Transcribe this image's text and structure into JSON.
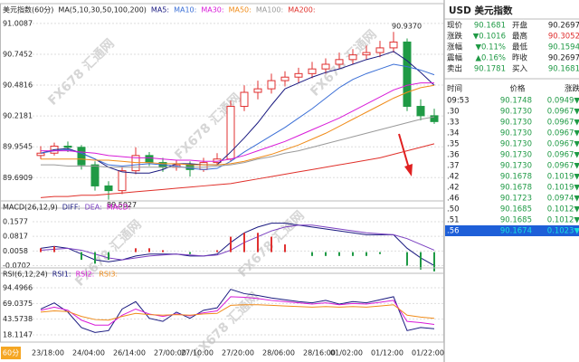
{
  "chart_data": [
    {
      "type": "candlestick",
      "title": "美元指数(60分)",
      "subtitle": "MA(5,10,30,50,100,200)",
      "ylim": [
        89.43,
        91.07
      ],
      "yticks": [
        91.0087,
        90.7452,
        90.4816,
        90.2181,
        89.9545,
        89.6909
      ],
      "grid": true,
      "up_color": "#e03030",
      "down_color": "#1f9a45",
      "open": [
        89.88,
        89.9,
        89.96,
        89.95,
        89.8,
        89.62,
        89.58,
        89.75,
        89.88,
        89.82,
        89.78,
        89.8,
        89.76,
        89.82,
        89.85,
        90.3,
        90.42,
        90.45,
        90.52,
        90.55,
        90.58,
        90.62,
        90.66,
        90.7,
        90.74,
        90.76,
        90.8,
        90.85,
        90.3,
        90.22
      ],
      "high": [
        89.96,
        89.99,
        90.0,
        89.97,
        89.83,
        89.66,
        89.78,
        89.95,
        89.91,
        89.86,
        89.84,
        89.83,
        89.86,
        89.9,
        90.35,
        90.48,
        90.52,
        90.58,
        90.6,
        90.63,
        90.68,
        90.71,
        90.76,
        90.79,
        90.82,
        90.86,
        90.937,
        90.88,
        90.36,
        90.28
      ],
      "low": [
        89.85,
        89.88,
        89.91,
        89.76,
        89.58,
        89.5027,
        89.55,
        89.72,
        89.79,
        89.74,
        89.75,
        89.7,
        89.74,
        89.8,
        89.83,
        90.26,
        90.36,
        90.41,
        90.47,
        90.5,
        90.54,
        90.58,
        90.62,
        90.66,
        90.7,
        90.72,
        90.76,
        90.26,
        90.18,
        90.15
      ],
      "close": [
        89.9,
        89.96,
        89.95,
        89.8,
        89.62,
        89.58,
        89.75,
        89.88,
        89.82,
        89.78,
        89.8,
        89.76,
        89.82,
        89.85,
        90.3,
        90.42,
        90.45,
        90.52,
        90.55,
        90.58,
        90.62,
        90.66,
        90.7,
        90.74,
        90.76,
        90.8,
        90.85,
        90.3,
        90.22,
        90.17
      ],
      "annotations": [
        {
          "value": 90.937,
          "label": "90.9370"
        },
        {
          "value": 89.5027,
          "label": "89.5027"
        }
      ],
      "series": [
        {
          "name": "MA5:",
          "color": "#1a1a80",
          "values": [
            89.9,
            89.93,
            89.94,
            89.9,
            89.85,
            89.78,
            89.74,
            89.73,
            89.73,
            89.76,
            89.81,
            89.81,
            89.8,
            89.8,
            89.91,
            90.03,
            90.16,
            90.31,
            90.45,
            90.5,
            90.55,
            90.59,
            90.62,
            90.66,
            90.7,
            90.73,
            90.77,
            90.69,
            90.59,
            90.48
          ]
        },
        {
          "name": "MA10:",
          "color": "#3b6fd6",
          "values": [
            89.9,
            89.92,
            89.93,
            89.9,
            89.85,
            89.8,
            89.79,
            89.8,
            89.81,
            89.8,
            89.79,
            89.77,
            89.76,
            89.77,
            89.83,
            89.91,
            89.98,
            90.05,
            90.12,
            90.2,
            90.28,
            90.37,
            90.46,
            90.53,
            90.58,
            90.62,
            90.66,
            90.64,
            90.61,
            90.57
          ]
        },
        {
          "name": "MA30:",
          "color": "#d81bd8",
          "values": [
            89.92,
            89.92,
            89.92,
            89.91,
            89.9,
            89.88,
            89.87,
            89.86,
            89.86,
            89.85,
            89.84,
            89.84,
            89.83,
            89.83,
            89.85,
            89.88,
            89.92,
            89.96,
            90.0,
            90.05,
            90.1,
            90.15,
            90.2,
            90.26,
            90.32,
            90.38,
            90.44,
            90.48,
            90.5,
            90.5
          ]
        },
        {
          "name": "MA50:",
          "color": "#f08c1a",
          "values": [
            89.85,
            89.85,
            89.85,
            89.85,
            89.84,
            89.84,
            89.83,
            89.82,
            89.82,
            89.81,
            89.81,
            89.8,
            89.8,
            89.8,
            89.81,
            89.83,
            89.86,
            89.89,
            89.93,
            89.97,
            90.02,
            90.07,
            90.13,
            90.19,
            90.25,
            90.31,
            90.37,
            90.42,
            90.46,
            90.48
          ]
        },
        {
          "name": "MA100:",
          "color": "#9a9a9a",
          "values": [
            89.8,
            89.8,
            89.79,
            89.79,
            89.79,
            89.78,
            89.78,
            89.78,
            89.78,
            89.78,
            89.78,
            89.78,
            89.78,
            89.79,
            89.8,
            89.82,
            89.85,
            89.87,
            89.9,
            89.92,
            89.95,
            89.98,
            90.01,
            90.04,
            90.07,
            90.1,
            90.13,
            90.16,
            90.19,
            90.21
          ]
        },
        {
          "name": "MA200:",
          "color": "#e0302a",
          "values": [
            89.52,
            89.53,
            89.53,
            89.54,
            89.54,
            89.55,
            89.56,
            89.57,
            89.58,
            89.59,
            89.6,
            89.61,
            89.62,
            89.63,
            89.64,
            89.66,
            89.68,
            89.7,
            89.72,
            89.74,
            89.76,
            89.78,
            89.8,
            89.82,
            89.84,
            89.86,
            89.89,
            89.92,
            89.95,
            89.98
          ]
        }
      ]
    },
    {
      "type": "line",
      "title": "MACD(26,12,9)",
      "ylim": [
        -0.11,
        0.2
      ],
      "yticks": [
        0.1577,
        0.0817,
        0.0058,
        -0.0702
      ],
      "grid": true,
      "bar_up_color": "#e03030",
      "bar_down_color": "#1f9a45",
      "series": [
        {
          "name": "DIFF:",
          "color": "#1a1a80",
          "values": [
            0.02,
            0.03,
            0.02,
            -0.01,
            -0.04,
            -0.05,
            -0.04,
            -0.02,
            -0.01,
            -0.01,
            -0.01,
            -0.02,
            -0.02,
            -0.01,
            0.05,
            0.1,
            0.13,
            0.15,
            0.15,
            0.14,
            0.13,
            0.12,
            0.11,
            0.1,
            0.09,
            0.09,
            0.09,
            0.02,
            -0.03,
            -0.07
          ]
        },
        {
          "name": "DEA:",
          "color": "#7a3fc0",
          "values": [
            0.01,
            0.015,
            0.02,
            0.01,
            -0.01,
            -0.03,
            -0.04,
            -0.03,
            -0.02,
            -0.015,
            -0.01,
            -0.015,
            -0.02,
            -0.015,
            0.01,
            0.05,
            0.08,
            0.11,
            0.13,
            0.14,
            0.14,
            0.13,
            0.12,
            0.11,
            0.1,
            0.095,
            0.09,
            0.07,
            0.04,
            0.01
          ]
        },
        {
          "name": "MACD:",
          "color": "#cc00cc",
          "style": "bar",
          "values": [
            0.02,
            0.03,
            0,
            -0.04,
            -0.06,
            -0.04,
            0,
            0.02,
            0.02,
            0.01,
            0,
            -0.01,
            0,
            0.01,
            0.08,
            0.1,
            0.1,
            0.08,
            0.04,
            0,
            -0.02,
            -0.02,
            -0.02,
            -0.02,
            -0.02,
            -0.01,
            0,
            -0.07,
            -0.09,
            -0.1
          ]
        }
      ]
    },
    {
      "type": "line",
      "title": "RSI(6,12,24)",
      "ylim": [
        6.4,
        106.2
      ],
      "yticks": [
        94.4966,
        69.0375,
        43.5738,
        18.1147
      ],
      "grid": true,
      "categories": [
        "23/18:00",
        null,
        null,
        "24/04:00",
        null,
        null,
        "26/14:00",
        null,
        null,
        "27/00:00",
        null,
        "27/10:00",
        null,
        null,
        "27/20:00",
        null,
        null,
        "28/06:00",
        null,
        null,
        "28/16:00",
        null,
        "01/02:00",
        null,
        null,
        "01/12:00",
        null,
        null,
        "01/22:00",
        null
      ],
      "series": [
        {
          "name": "RSI1:",
          "color": "#1a1a80",
          "values": [
            60,
            70,
            55,
            30,
            22,
            25,
            60,
            72,
            45,
            40,
            55,
            45,
            58,
            62,
            92,
            85,
            82,
            78,
            75,
            72,
            70,
            74,
            68,
            72,
            70,
            75,
            80,
            25,
            30,
            28
          ]
        },
        {
          "name": "RSI2:",
          "color": "#d81bd8",
          "values": [
            58,
            63,
            58,
            42,
            34,
            34,
            50,
            60,
            52,
            48,
            52,
            49,
            54,
            57,
            80,
            79,
            77,
            74,
            72,
            70,
            68,
            70,
            67,
            69,
            68,
            71,
            74,
            40,
            38,
            35
          ]
        },
        {
          "name": "RSI3:",
          "color": "#f08c1a",
          "values": [
            55,
            57,
            56,
            48,
            43,
            42,
            48,
            53,
            51,
            50,
            51,
            50,
            52,
            53,
            66,
            67,
            67,
            66,
            65,
            64,
            63,
            64,
            63,
            64,
            63,
            65,
            67,
            50,
            47,
            45
          ]
        }
      ]
    }
  ],
  "interval_label": "60分",
  "watermark": "FX678 汇通网",
  "quote_panel": {
    "title": "USD 美元指数",
    "rows": [
      [
        "现价",
        "90.1681",
        "开盘",
        "90.2697"
      ],
      [
        "涨跌",
        "▼0.1016",
        "最高",
        "90.3052"
      ],
      [
        "涨幅",
        "▼0.11%",
        "最低",
        "90.1594"
      ],
      [
        "震幅",
        "▲0.16%",
        "昨收",
        "90.2697"
      ],
      [
        "卖出",
        "90.1781",
        "买入",
        "90.1681"
      ]
    ],
    "ticks_header": [
      "时间",
      "价格",
      "涨跌"
    ],
    "ticks": [
      [
        "09:53",
        "90.1748",
        "0.0949▼"
      ],
      [
        ".30",
        "90.1730",
        "0.0967▼"
      ],
      [
        ".33",
        "90.1730",
        "0.0967▼"
      ],
      [
        ".34",
        "90.1730",
        "0.0967▼"
      ],
      [
        ".35",
        "90.1730",
        "0.0967▼"
      ],
      [
        ".36",
        "90.1730",
        "0.0967▼"
      ],
      [
        ".37",
        "90.1730",
        "0.0967▼"
      ],
      [
        ".42",
        "90.1678",
        "0.1019▼"
      ],
      [
        ".42",
        "90.1678",
        "0.1019▼"
      ],
      [
        ".46",
        "90.1723",
        "0.0974▼"
      ],
      [
        ".50",
        "90.1685",
        "0.1012▼"
      ],
      [
        ".51",
        "90.1685",
        "0.1012▼"
      ],
      [
        ".56",
        "90.1674",
        "0.1023▼"
      ]
    ]
  }
}
